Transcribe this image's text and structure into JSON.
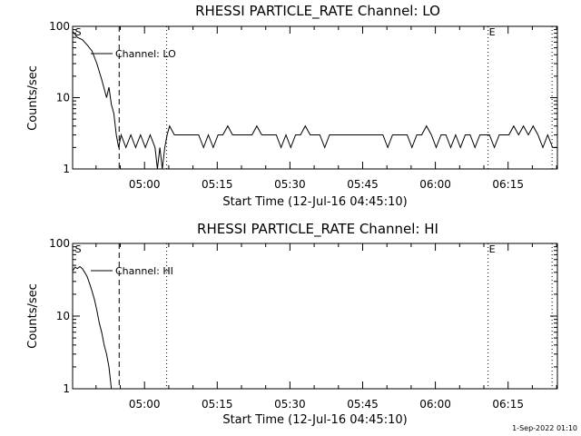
{
  "footer": {
    "timestamp": "1-Sep-2022 01:10"
  },
  "chart_data": [
    {
      "type": "line",
      "title": "RHESSI PARTICLE_RATE Channel: LO",
      "xlabel": "Start Time (12-Jul-16 04:45:10)",
      "ylabel": "Counts/sec",
      "yscale": "log",
      "ylim": [
        1,
        100
      ],
      "xlim_minutes": [
        0,
        100
      ],
      "x_ticks": [
        {
          "minute": 14.83,
          "label": "05:00"
        },
        {
          "minute": 29.83,
          "label": "05:15"
        },
        {
          "minute": 44.83,
          "label": "05:30"
        },
        {
          "minute": 59.83,
          "label": "05:45"
        },
        {
          "minute": 74.83,
          "label": "06:00"
        },
        {
          "minute": 89.83,
          "label": "06:15"
        }
      ],
      "y_ticks": [
        {
          "value": 1,
          "label": "1"
        },
        {
          "value": 10,
          "label": "10"
        },
        {
          "value": 100,
          "label": "100"
        }
      ],
      "legend": {
        "label": "Channel: LO",
        "placement": "top-left"
      },
      "markers": [
        {
          "label": "S",
          "minute": 0.3,
          "style": "none"
        },
        {
          "label": "",
          "minute": 9.6,
          "style": "dashed"
        },
        {
          "label": "",
          "minute": 19.4,
          "style": "dotted"
        },
        {
          "label": "E",
          "minute": 85.7,
          "style": "dotted"
        },
        {
          "label": "",
          "minute": 98.9,
          "style": "dotted"
        }
      ],
      "series": [
        {
          "name": "Channel: LO",
          "points": [
            [
              0,
              85
            ],
            [
              1,
              70
            ],
            [
              2,
              65
            ],
            [
              3,
              55
            ],
            [
              4,
              45
            ],
            [
              5,
              30
            ],
            [
              6,
              18
            ],
            [
              7,
              10
            ],
            [
              7.5,
              14
            ],
            [
              8,
              8
            ],
            [
              8.5,
              6
            ],
            [
              9,
              3
            ],
            [
              9.5,
              2
            ],
            [
              10,
              3
            ],
            [
              11,
              2
            ],
            [
              12,
              3
            ],
            [
              13,
              2
            ],
            [
              14,
              3
            ],
            [
              15,
              2
            ],
            [
              16,
              3
            ],
            [
              17,
              2
            ],
            [
              17.5,
              1
            ],
            [
              18,
              2
            ],
            [
              18.5,
              1
            ],
            [
              19,
              2
            ],
            [
              19.5,
              3
            ],
            [
              20,
              4
            ],
            [
              21,
              3
            ],
            [
              22,
              3
            ],
            [
              23,
              3
            ],
            [
              24,
              3
            ],
            [
              25,
              3
            ],
            [
              26,
              3
            ],
            [
              27,
              2
            ],
            [
              28,
              3
            ],
            [
              29,
              2
            ],
            [
              30,
              3
            ],
            [
              31,
              3
            ],
            [
              32,
              4
            ],
            [
              33,
              3
            ],
            [
              34,
              3
            ],
            [
              35,
              3
            ],
            [
              36,
              3
            ],
            [
              37,
              3
            ],
            [
              38,
              4
            ],
            [
              39,
              3
            ],
            [
              40,
              3
            ],
            [
              41,
              3
            ],
            [
              42,
              3
            ],
            [
              43,
              2
            ],
            [
              44,
              3
            ],
            [
              45,
              2
            ],
            [
              46,
              3
            ],
            [
              47,
              3
            ],
            [
              48,
              4
            ],
            [
              49,
              3
            ],
            [
              50,
              3
            ],
            [
              51,
              3
            ],
            [
              52,
              2
            ],
            [
              53,
              3
            ],
            [
              54,
              3
            ],
            [
              55,
              3
            ],
            [
              56,
              3
            ],
            [
              57,
              3
            ],
            [
              58,
              3
            ],
            [
              59,
              3
            ],
            [
              60,
              3
            ],
            [
              61,
              3
            ],
            [
              62,
              3
            ],
            [
              63,
              3
            ],
            [
              64,
              3
            ],
            [
              65,
              2
            ],
            [
              66,
              3
            ],
            [
              67,
              3
            ],
            [
              68,
              3
            ],
            [
              69,
              3
            ],
            [
              70,
              2
            ],
            [
              71,
              3
            ],
            [
              72,
              3
            ],
            [
              73,
              4
            ],
            [
              74,
              3
            ],
            [
              75,
              2
            ],
            [
              76,
              3
            ],
            [
              77,
              3
            ],
            [
              78,
              2
            ],
            [
              79,
              3
            ],
            [
              80,
              2
            ],
            [
              81,
              3
            ],
            [
              82,
              3
            ],
            [
              83,
              2
            ],
            [
              84,
              3
            ],
            [
              85,
              3
            ],
            [
              86,
              3
            ],
            [
              87,
              2
            ],
            [
              88,
              3
            ],
            [
              89,
              3
            ],
            [
              90,
              3
            ],
            [
              91,
              4
            ],
            [
              92,
              3
            ],
            [
              93,
              4
            ],
            [
              94,
              3
            ],
            [
              95,
              4
            ],
            [
              96,
              3
            ],
            [
              97,
              2
            ],
            [
              98,
              3
            ],
            [
              99,
              2
            ],
            [
              100,
              2
            ]
          ]
        }
      ]
    },
    {
      "type": "line",
      "title": "RHESSI PARTICLE_RATE Channel: HI",
      "xlabel": "Start Time (12-Jul-16 04:45:10)",
      "ylabel": "Counts/sec",
      "yscale": "log",
      "ylim": [
        1,
        100
      ],
      "xlim_minutes": [
        0,
        100
      ],
      "x_ticks": [
        {
          "minute": 14.83,
          "label": "05:00"
        },
        {
          "minute": 29.83,
          "label": "05:15"
        },
        {
          "minute": 44.83,
          "label": "05:30"
        },
        {
          "minute": 59.83,
          "label": "05:45"
        },
        {
          "minute": 74.83,
          "label": "06:00"
        },
        {
          "minute": 89.83,
          "label": "06:15"
        }
      ],
      "y_ticks": [
        {
          "value": 1,
          "label": "1"
        },
        {
          "value": 10,
          "label": "10"
        },
        {
          "value": 100,
          "label": "100"
        }
      ],
      "legend": {
        "label": "Channel: HI",
        "placement": "top-left"
      },
      "markers": [
        {
          "label": "S",
          "minute": 0.3,
          "style": "none"
        },
        {
          "label": "",
          "minute": 9.6,
          "style": "dashed"
        },
        {
          "label": "",
          "minute": 19.4,
          "style": "dotted"
        },
        {
          "label": "E",
          "minute": 85.7,
          "style": "dotted"
        },
        {
          "label": "",
          "minute": 98.9,
          "style": "dotted"
        }
      ],
      "series": [
        {
          "name": "Channel: HI",
          "points": [
            [
              0,
              42
            ],
            [
              0.5,
              47
            ],
            [
              1,
              45
            ],
            [
              1.5,
              48
            ],
            [
              2,
              45
            ],
            [
              2.5,
              40
            ],
            [
              3,
              35
            ],
            [
              3.5,
              28
            ],
            [
              4,
              22
            ],
            [
              4.5,
              17
            ],
            [
              5,
              12
            ],
            [
              5.5,
              8
            ],
            [
              6,
              6
            ],
            [
              6.5,
              4
            ],
            [
              7,
              3
            ],
            [
              7.5,
              2
            ],
            [
              8,
              1
            ]
          ]
        }
      ]
    }
  ]
}
